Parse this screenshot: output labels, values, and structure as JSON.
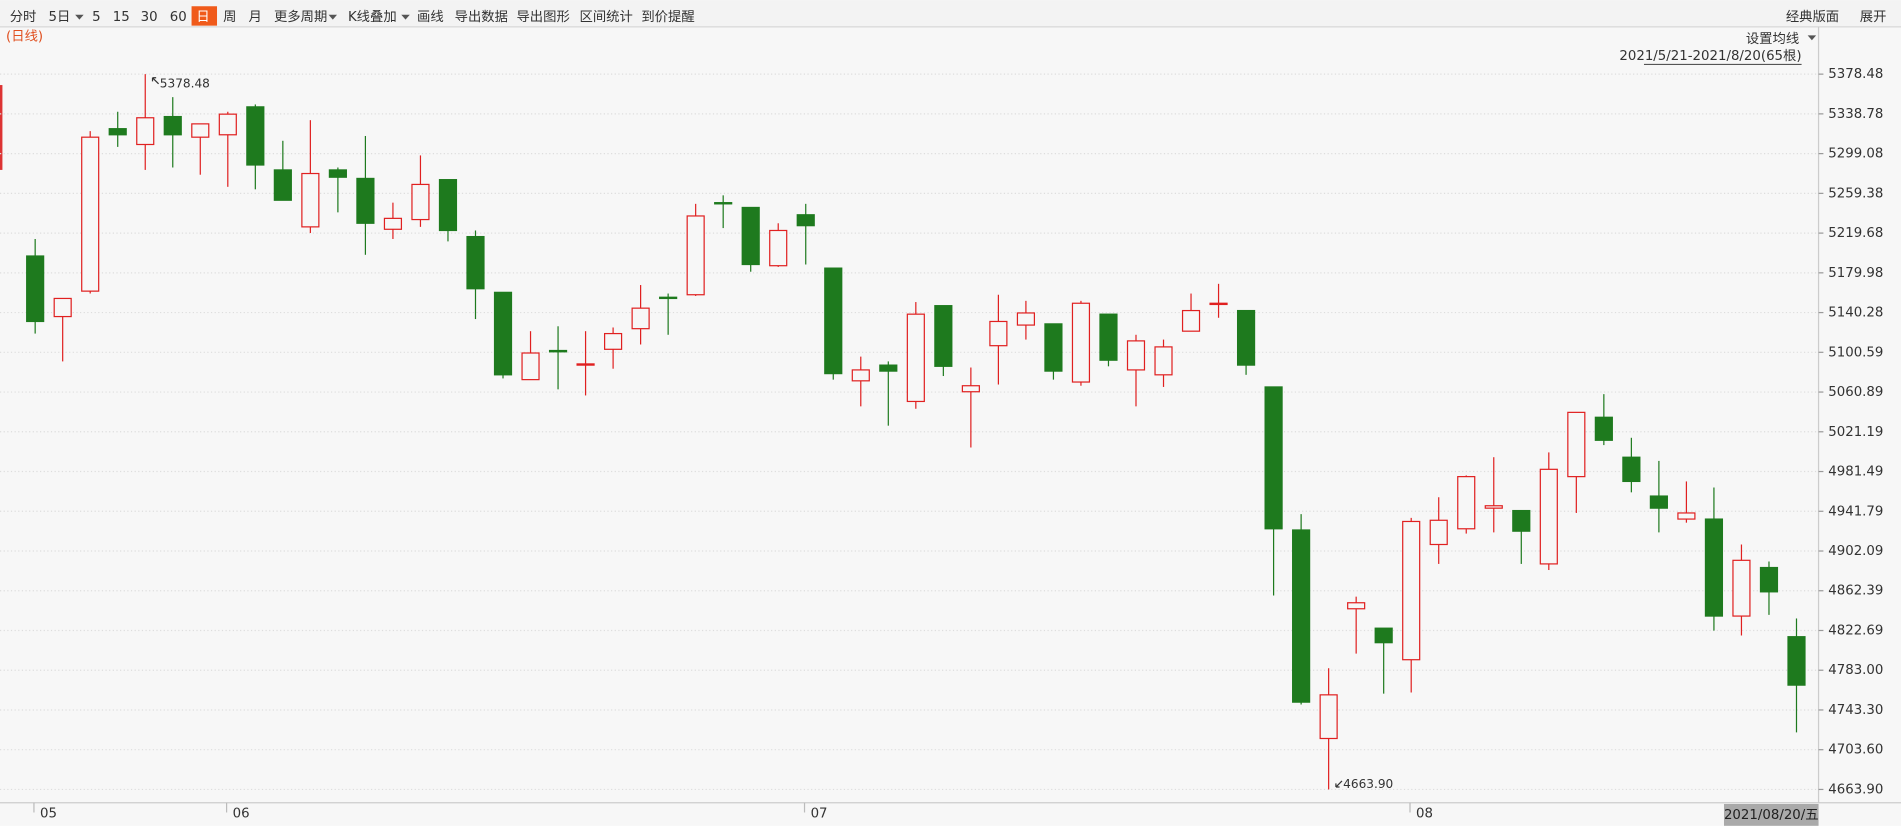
{
  "toolbar": {
    "items": [
      "分时",
      "5日",
      "5",
      "15",
      "30",
      "60",
      "日",
      "周",
      "月",
      "更多周期",
      "K线叠加",
      "画线",
      "导出数据",
      "导出图形",
      "区间统计",
      "到价提醒"
    ],
    "active": 6,
    "right_items": [
      "经典版面",
      "展开"
    ]
  },
  "chart_data": {
    "type": "candlestick",
    "period_label": "(日线)",
    "ma_setting": "设置均线",
    "range_label": "2021/5/21-2021/8/20(65根)",
    "cursor_label": "2021/08/20/五",
    "annotations": [
      {
        "index": 4,
        "field": "high",
        "text": "5378.48"
      },
      {
        "index": 47,
        "field": "low",
        "text": "4663.90"
      }
    ],
    "up_color": "#e02020",
    "down_color": "#1e7a1e",
    "grid": true,
    "categories": [
      "05",
      null,
      null,
      null,
      null,
      null,
      null,
      "06",
      null,
      null,
      null,
      null,
      null,
      null,
      null,
      null,
      null,
      null,
      null,
      null,
      null,
      null,
      null,
      null,
      null,
      null,
      null,
      null,
      "07",
      null,
      null,
      null,
      null,
      null,
      null,
      null,
      null,
      null,
      null,
      null,
      null,
      null,
      null,
      null,
      null,
      null,
      null,
      null,
      null,
      null,
      "08",
      null,
      null,
      null,
      null,
      null,
      null,
      null,
      null,
      null,
      null,
      null,
      null,
      null,
      null
    ],
    "open": [
      5196.8,
      5136.3,
      5161.7,
      5324.0,
      5308.2,
      5336.1,
      5315.5,
      5317.9,
      5345.8,
      5282.8,
      5225.9,
      5282.8,
      5274.3,
      5223.5,
      5233.2,
      5273.1,
      5216.2,
      5160.5,
      5073.3,
      5102.4,
      5087.8,
      5103.6,
      5124.2,
      5155.6,
      5158.1,
      5250.1,
      5245.3,
      5187.1,
      5238.0,
      5184.7,
      5072.1,
      5087.8,
      5051.5,
      5147.2,
      5061.2,
      5107.2,
      5127.8,
      5129.0,
      5070.9,
      5138.7,
      5083.0,
      5078.1,
      5121.7,
      5148.4,
      5142.3,
      5066.0,
      4923.1,
      4714.8,
      4844.4,
      4825.0,
      4793.5,
      4908.6,
      4924.3,
      4944.9,
      4942.5,
      4889.2,
      4976.4,
      5035.7,
      4995.8,
      4957.0,
      4934.0,
      4934.0,
      4837.1,
      4885.6,
      4816.5
    ],
    "high": [
      5213.8,
      5154.4,
      5321.6,
      5340.9,
      5378.48,
      5355.5,
      5328.8,
      5340.9,
      5348.2,
      5311.9,
      5332.5,
      5285.2,
      5316.7,
      5250.1,
      5297.3,
      5273.1,
      5222.3,
      5160.5,
      5121.7,
      5126.6,
      5121.7,
      5125.4,
      5167.8,
      5159.3,
      5248.9,
      5257.4,
      5245.3,
      5229.5,
      5248.9,
      5184.7,
      5096.3,
      5091.5,
      5150.8,
      5147.2,
      5085.4,
      5158.1,
      5152.0,
      5129.0,
      5152.0,
      5138.7,
      5118.1,
      5113.3,
      5159.3,
      5169.0,
      5142.3,
      5066.0,
      4938.9,
      4785.0,
      4856.5,
      4825.0,
      4935.2,
      4955.8,
      4977.6,
      4995.8,
      4942.5,
      5000.6,
      5040.6,
      5058.8,
      5015.2,
      4992.1,
      4971.6,
      4965.5,
      4908.6,
      4891.6,
      4834.7
    ],
    "low": [
      5119.3,
      5091.5,
      5159.3,
      5305.8,
      5282.8,
      5285.2,
      5278.0,
      5265.9,
      5263.4,
      5252.5,
      5219.8,
      5240.4,
      5198.0,
      5213.8,
      5225.9,
      5211.4,
      5133.8,
      5074.5,
      5073.3,
      5063.6,
      5057.5,
      5084.2,
      5108.4,
      5118.1,
      5156.9,
      5224.7,
      5181.1,
      5185.9,
      5188.3,
      5073.3,
      5046.6,
      5027.3,
      5044.2,
      5076.9,
      5005.5,
      5068.4,
      5113.3,
      5073.3,
      5067.2,
      5086.6,
      5046.6,
      5066.0,
      5121.7,
      5135.1,
      5078.1,
      4857.7,
      4748.7,
      4663.9,
      4799.6,
      4759.6,
      4760.8,
      4889.2,
      4919.5,
      4920.7,
      4889.2,
      4883.1,
      4940.1,
      5007.9,
      4960.7,
      4920.7,
      4930.4,
      4822.6,
      4817.7,
      4838.3,
      4720.9
    ],
    "close": [
      5131.4,
      5154.4,
      5315.5,
      5317.9,
      5334.9,
      5317.9,
      5328.8,
      5338.5,
      5287.7,
      5252.5,
      5279.2,
      5275.5,
      5229.5,
      5234.4,
      5268.3,
      5222.3,
      5164.1,
      5078.1,
      5099.9,
      5101.1,
      5089.0,
      5119.3,
      5144.7,
      5154.4,
      5236.8,
      5248.9,
      5188.3,
      5222.3,
      5227.1,
      5079.3,
      5083.0,
      5081.8,
      5138.7,
      5086.6,
      5067.2,
      5131.4,
      5139.9,
      5081.8,
      5149.6,
      5092.7,
      5112.0,
      5106.0,
      5142.3,
      5149.6,
      5087.8,
      4924.3,
      4751.1,
      4758.4,
      4850.4,
      4810.5,
      4931.6,
      4932.8,
      4976.4,
      4947.3,
      4921.9,
      4983.7,
      5040.6,
      5012.7,
      4971.6,
      4944.9,
      4940.1,
      4837.1,
      4892.8,
      4861.3,
      4768.1
    ],
    "ylim": [
      4650.58,
      5425.71
    ],
    "yticks": [
      5378.48,
      5338.78,
      5299.08,
      5259.38,
      5219.68,
      5179.98,
      5140.28,
      5100.59,
      5060.89,
      5021.19,
      4981.49,
      4941.79,
      4902.09,
      4862.39,
      4822.69,
      {
        "value": 4783,
        "label": "4783.00"
      },
      {
        "value": 4743.3,
        "label": "4743.30"
      },
      {
        "value": 4703.6,
        "label": "4703.60"
      },
      {
        "value": 4663.9,
        "label": "4663.90"
      }
    ]
  }
}
